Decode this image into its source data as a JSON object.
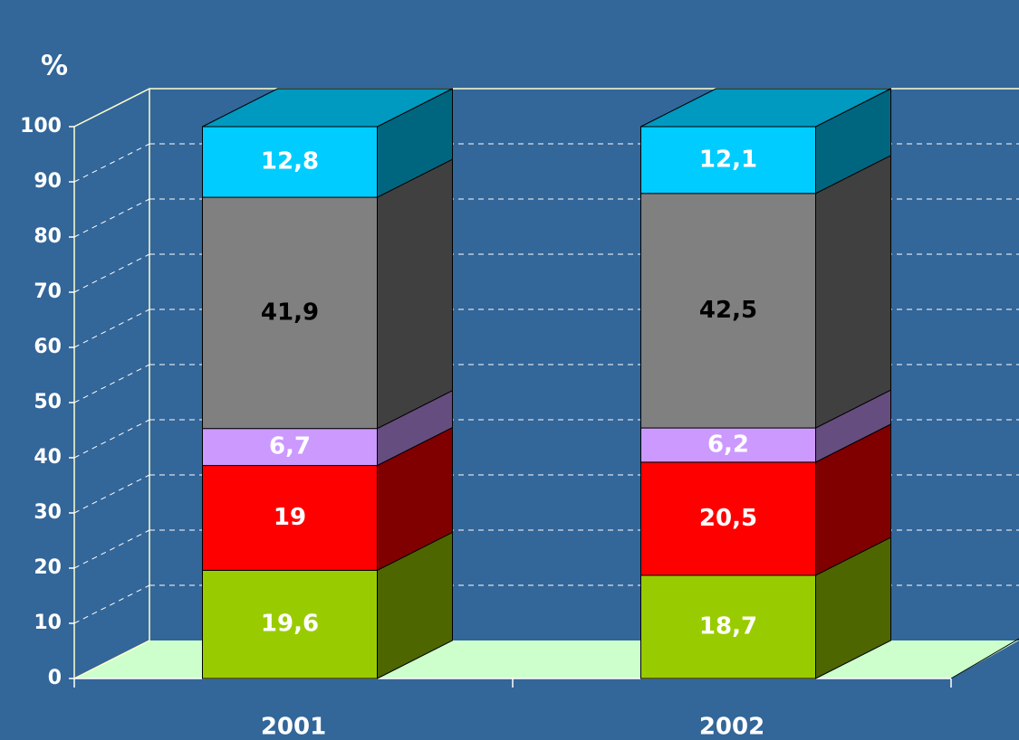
{
  "chart_data": {
    "type": "bar3d-stacked",
    "y_label": "%",
    "categories": [
      "2001",
      "2002"
    ],
    "series": [
      {
        "color": "#99cc00",
        "label_color": "#ffffff",
        "values": [
          19.6,
          18.7
        ],
        "value_labels": [
          "19,6",
          "18,7"
        ]
      },
      {
        "color": "#ff0000",
        "label_color": "#ffffff",
        "values": [
          19,
          20.5
        ],
        "value_labels": [
          "19",
          "20,5"
        ]
      },
      {
        "color": "#cc99ff",
        "label_color": "#ffffff",
        "values": [
          6.7,
          6.2
        ],
        "value_labels": [
          "6,7",
          "6,2"
        ]
      },
      {
        "color": "#808080",
        "label_color": "#000000",
        "values": [
          41.9,
          42.5
        ],
        "value_labels": [
          "41,9",
          "42,5"
        ]
      },
      {
        "color": "#00ccff",
        "label_color": "#ffffff",
        "values": [
          12.8,
          12.1
        ],
        "value_labels": [
          "12,8",
          "12,1"
        ]
      }
    ],
    "ylim": [
      0,
      100
    ],
    "yticks": [
      0,
      10,
      20,
      30,
      40,
      50,
      60,
      70,
      80,
      90,
      100
    ],
    "grid": true,
    "background": "#336699",
    "floor_color": "#ccffcc",
    "wall_line_color": "#ffffcc"
  }
}
